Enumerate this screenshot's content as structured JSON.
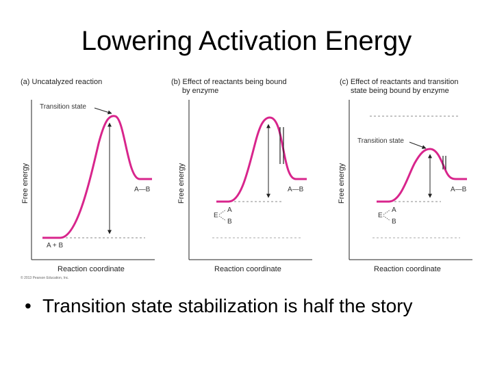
{
  "slide": {
    "title": "Lowering Activation Energy",
    "bullet": "Transition state stabilization is half the story",
    "copyright": "© 2013 Pearson Education, Inc."
  },
  "panels": [
    {
      "title_line1": "(a) Uncatalyzed reaction",
      "title_line2": "",
      "y_axis": "Free energy",
      "x_axis": "Reaction coordinate",
      "ts_label": "Transition state",
      "product_label": "A—B",
      "reactant_label": "A + B",
      "e_label": "",
      "e_a": "",
      "e_b": ""
    },
    {
      "title_line1": "(b) Effect of reactants being bound",
      "title_line2": "by enzyme",
      "y_axis": "Free energy",
      "x_axis": "Reaction coordinate",
      "ts_label": "",
      "product_label": "A—B",
      "reactant_label": "",
      "e_label": "E",
      "e_a": "A",
      "e_b": "B"
    },
    {
      "title_line1": "(c) Effect of reactants and transition",
      "title_line2": "state being bound by enzyme",
      "y_axis": "Free energy",
      "x_axis": "Reaction coordinate",
      "ts_label": "Transition state",
      "product_label": "A—B",
      "reactant_label": "",
      "e_label": "E",
      "e_a": "A",
      "e_b": "B"
    }
  ],
  "colors": {
    "curve": "#d8258c",
    "axis": "#222222",
    "dash": "#888888"
  }
}
